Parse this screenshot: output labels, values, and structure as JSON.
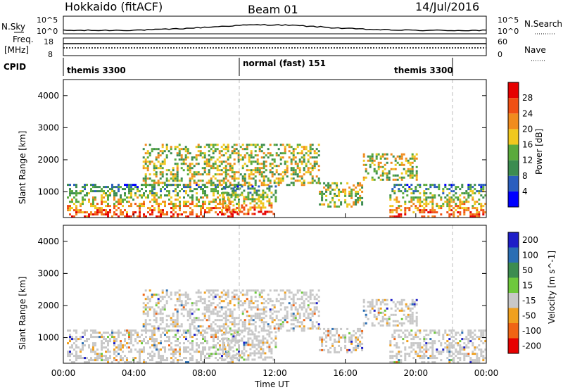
{
  "header": {
    "title": "Hokkaido (fitACF)",
    "beam": "Beam 01",
    "date": "14/Jul/2016"
  },
  "top_panels": {
    "nsky_label": "N.Sky",
    "nsky_ticks": [
      "10^5",
      "10^0"
    ],
    "nsearch_label": "N.Search",
    "nsearch_ticks": [
      "10^5",
      "10^0"
    ],
    "freq_label": "Freq.",
    "freq_unit": "[MHz]",
    "freq_ticks": [
      "18",
      "8"
    ],
    "nave_label": "Nave",
    "nave_ticks": [
      "60",
      "0"
    ],
    "cpid_label": "CPID",
    "cpid_segments": [
      "themis 3300",
      "normal (fast) 151",
      "themis 3300"
    ]
  },
  "chart_data": [
    {
      "type": "heatmap",
      "name": "power",
      "ylabel": "Slant Range [km]",
      "xlabel": "",
      "x_ticks": [
        "00:00",
        "04:00",
        "08:00",
        "12:00",
        "16:00",
        "20:00",
        "00:00"
      ],
      "y_ticks": [
        1000,
        2000,
        3000,
        4000
      ],
      "ylim": [
        200,
        4500
      ],
      "colorbar": {
        "label": "Power [dB]",
        "ticks": [
          4,
          8,
          12,
          16,
          20,
          24,
          28
        ],
        "colors": [
          "#0000ff",
          "#2a5ebe",
          "#3c8c50",
          "#5aaa3c",
          "#f0c81e",
          "#f08c1e",
          "#f05014",
          "#e60000"
        ]
      },
      "echo_regions": [
        {
          "start_hour": 0.2,
          "end_hour": 10.0,
          "min_km": 250,
          "max_km": 1250,
          "level": "high"
        },
        {
          "start_hour": 4.5,
          "end_hour": 14.5,
          "min_km": 1200,
          "max_km": 2500,
          "level": "medium"
        },
        {
          "start_hour": 9.0,
          "end_hour": 12.0,
          "min_km": 300,
          "max_km": 1200,
          "level": "high"
        },
        {
          "start_hour": 14.5,
          "end_hour": 17.0,
          "min_km": 550,
          "max_km": 1300,
          "level": "medium"
        },
        {
          "start_hour": 18.5,
          "end_hour": 24.0,
          "min_km": 250,
          "max_km": 1250,
          "level": "high"
        },
        {
          "start_hour": 17.0,
          "end_hour": 20.0,
          "min_km": 1400,
          "max_km": 2200,
          "level": "medium"
        }
      ]
    },
    {
      "type": "heatmap",
      "name": "velocity",
      "ylabel": "Slant Range [km]",
      "xlabel": "Time UT",
      "x_ticks": [
        "00:00",
        "04:00",
        "08:00",
        "12:00",
        "16:00",
        "20:00",
        "00:00"
      ],
      "y_ticks": [
        1000,
        2000,
        3000,
        4000
      ],
      "ylim": [
        200,
        4500
      ],
      "colorbar": {
        "label": "Velocity [m s^-1]",
        "ticks": [
          200,
          100,
          50,
          15,
          -15,
          -50,
          -100,
          -200
        ],
        "colors": [
          "#1e1ec8",
          "#2a6eb4",
          "#3c8c50",
          "#6ec83c",
          "#c8c8c8",
          "#f0a01e",
          "#f06414",
          "#e60000"
        ]
      }
    }
  ]
}
